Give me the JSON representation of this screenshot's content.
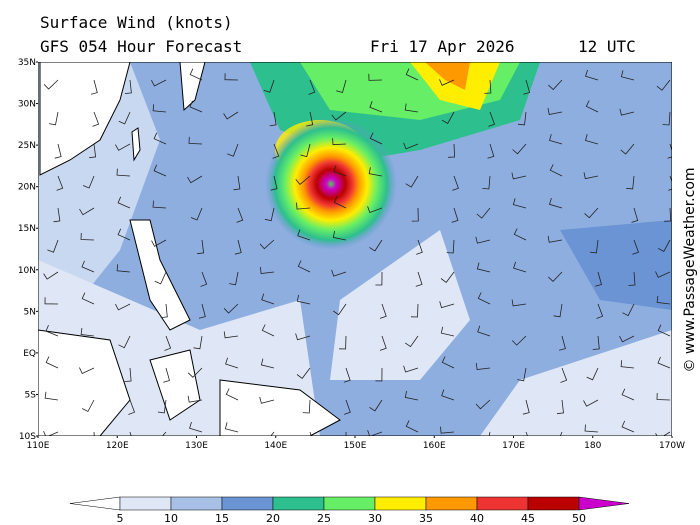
{
  "header": {
    "title": "Surface Wind (knots)",
    "subtitle": "GFS 054 Hour Forecast",
    "date": "Fri 17 Apr 2026",
    "time": "12 UTC"
  },
  "map": {
    "lat_labels": [
      "35N",
      "30N",
      "25N",
      "20N",
      "15N",
      "10N",
      "5N",
      "EQ",
      "5S",
      "10S"
    ],
    "lon_labels": [
      "110E",
      "120E",
      "130E",
      "140E",
      "150E",
      "160E",
      "170E",
      "180",
      "170W"
    ]
  },
  "legend": {
    "labels": [
      5,
      10,
      15,
      20,
      25,
      30,
      35,
      40,
      45,
      50
    ],
    "colors": [
      "#ffffff",
      "#dfe7f6",
      "#a8c0e6",
      "#6b94d4",
      "#2dbf8e",
      "#66ee66",
      "#ffee00",
      "#ff9900",
      "#ee3333",
      "#bb0000",
      "#cc00cc"
    ]
  },
  "credit": "© www.PassageWeather.com"
}
